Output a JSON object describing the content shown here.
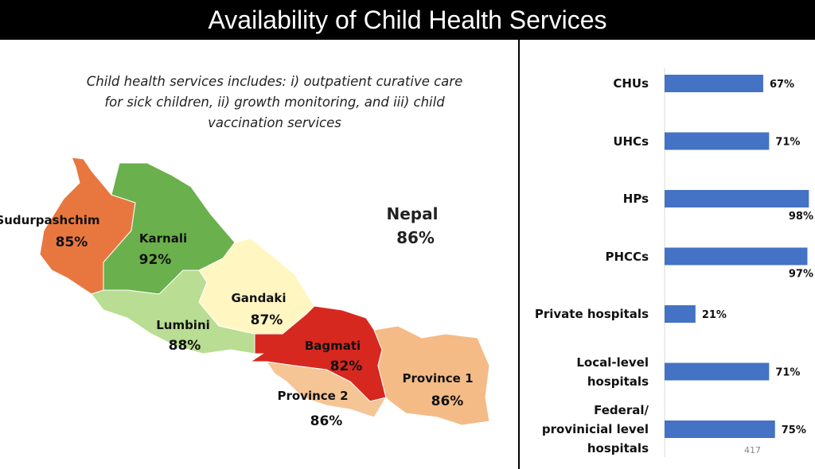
{
  "header": {
    "title": "Availability of Child Health Services"
  },
  "map": {
    "note": "Child health services includes: i) outpatient curative care for sick children, ii) growth monitoring, and iii) child vaccination services",
    "national": {
      "name": "Nepal",
      "value": 86,
      "label": "86%"
    },
    "regions": [
      {
        "name": "Sudurpashchim",
        "value": 85,
        "label": "85%",
        "color": "#e8773f"
      },
      {
        "name": "Karnali",
        "value": 92,
        "label": "92%",
        "color": "#6ab04c"
      },
      {
        "name": "Lumbini",
        "value": 88,
        "label": "88%",
        "color": "#b9dd92"
      },
      {
        "name": "Gandaki",
        "value": 87,
        "label": "87%",
        "color": "#fff6c2"
      },
      {
        "name": "Bagmati",
        "value": 82,
        "label": "82%",
        "color": "#d7281f"
      },
      {
        "name": "Province 2",
        "value": 86,
        "label": "86%",
        "color": "#f5c595"
      },
      {
        "name": "Province 1",
        "value": 86,
        "label": "86%",
        "color": "#f4bb86"
      }
    ]
  },
  "chart_data": {
    "type": "bar",
    "orientation": "horizontal",
    "color": "#4472c4",
    "categories": [
      "CHUs",
      "UHCs",
      "HPs",
      "PHCCs",
      "Private hospitals",
      "Local-level hospitals",
      "Federal/ provinicial level hospitals"
    ],
    "values": [
      67,
      71,
      98,
      97,
      21,
      71,
      75
    ],
    "value_labels": [
      "67%",
      "71%",
      "98%",
      "97%",
      "21%",
      "71%",
      "75%"
    ],
    "xlim": [
      0,
      100
    ]
  },
  "footer": {
    "page": "417"
  }
}
